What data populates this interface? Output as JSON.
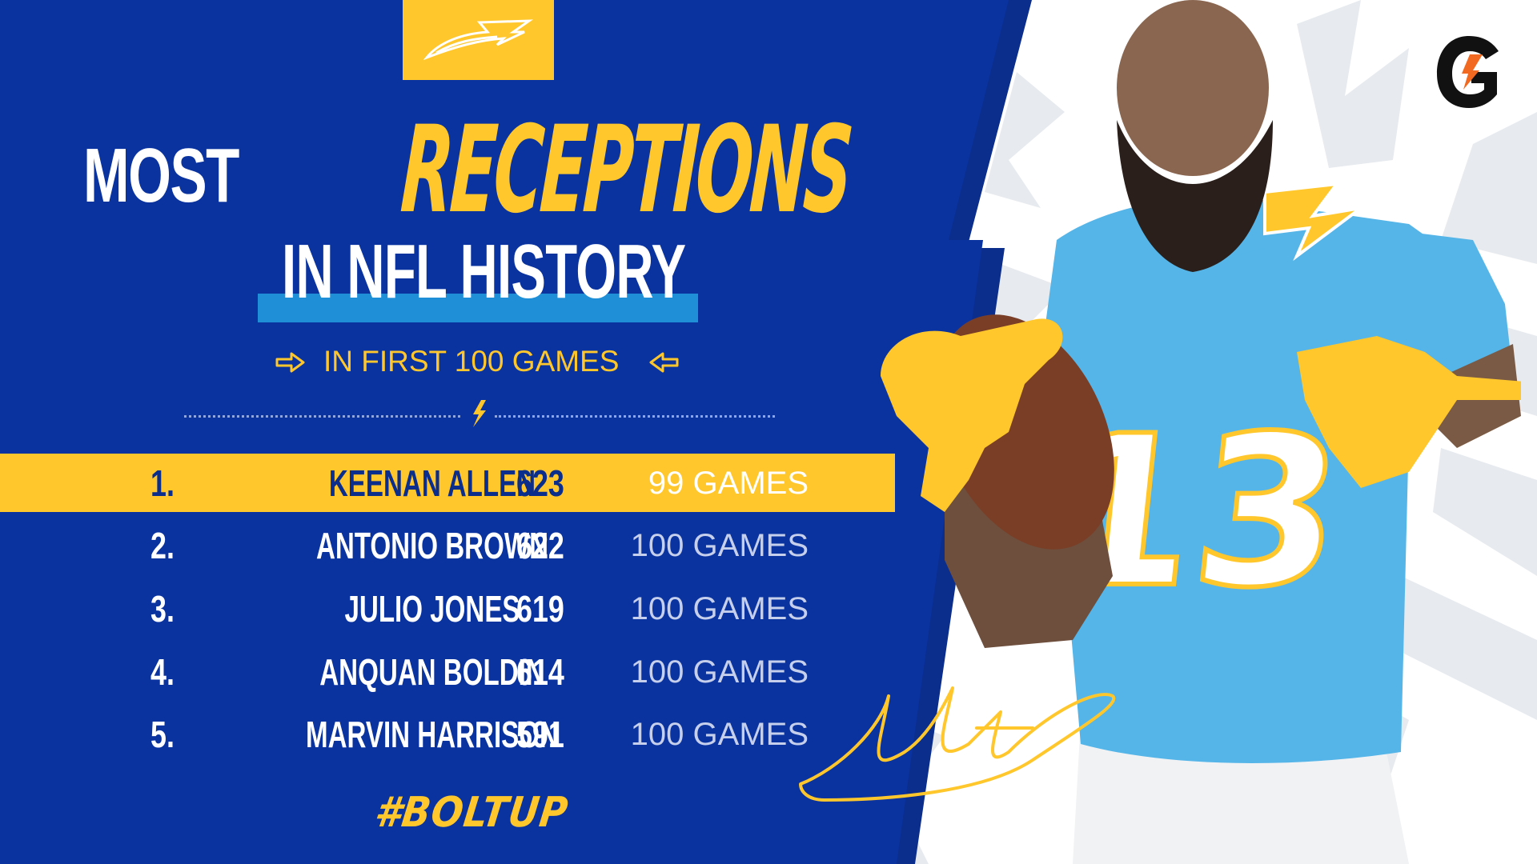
{
  "logo": {
    "name": "chargers-bolt-logo"
  },
  "headline": {
    "word_1": "MOST",
    "word_2": "RECEPTIONS",
    "line_2": "IN NFL HISTORY"
  },
  "subtitle": "IN FIRST 100 GAMES",
  "rankings": [
    {
      "rank": "1.",
      "name": "KEENAN ALLEN",
      "receptions": "623",
      "games": "99 GAMES",
      "highlighted": true
    },
    {
      "rank": "2.",
      "name": "ANTONIO BROWN",
      "receptions": "622",
      "games": "100 GAMES",
      "highlighted": false
    },
    {
      "rank": "3.",
      "name": "JULIO JONES",
      "receptions": "619",
      "games": "100 GAMES",
      "highlighted": false
    },
    {
      "rank": "4.",
      "name": "ANQUAN BOLDIN",
      "receptions": "614",
      "games": "100 GAMES",
      "highlighted": false
    },
    {
      "rank": "5.",
      "name": "MARVIN HARRISON",
      "receptions": "591",
      "games": "100 GAMES",
      "highlighted": false
    }
  ],
  "hashtag": "#BOLTUP",
  "player_jersey_number": "13",
  "sponsor": {
    "name": "gatorade-g-logo"
  },
  "colors": {
    "navy": "#0B2D8C",
    "royal_blue": "#0A3BA8",
    "gold": "#FFC72C",
    "powder_blue": "#1F8FD8"
  }
}
